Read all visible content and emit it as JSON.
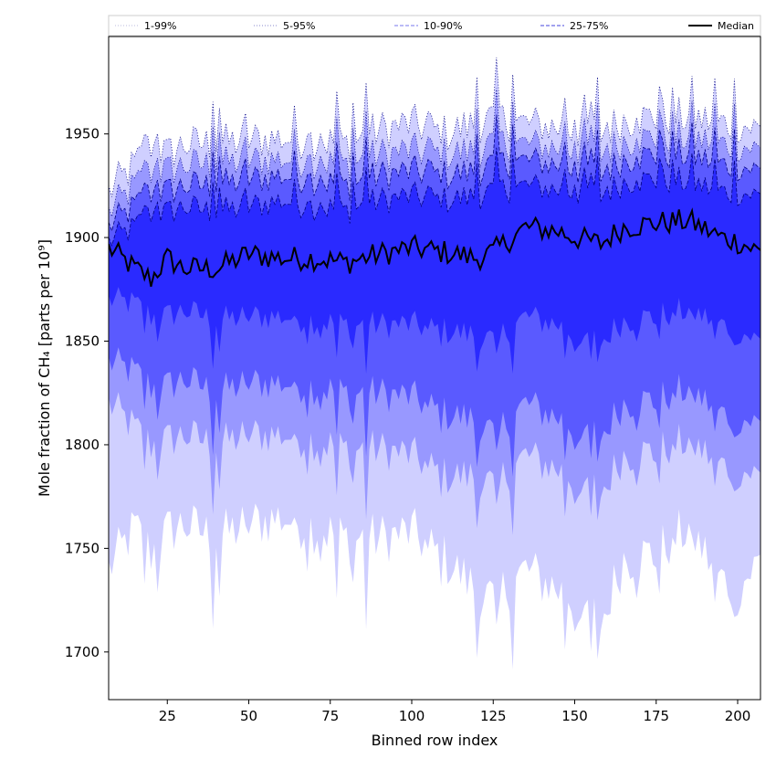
{
  "chart_data": {
    "type": "area",
    "title": "",
    "xlabel": "Binned row index",
    "ylabel": "Mole fraction of CH₄ [parts per 10⁹]",
    "xlim": [
      7,
      207
    ],
    "ylim": [
      1677,
      1997
    ],
    "xticks": [
      25,
      50,
      75,
      100,
      125,
      150,
      175,
      200
    ],
    "yticks": [
      1700,
      1750,
      1800,
      1850,
      1900,
      1950
    ],
    "grid": false,
    "legend_position": "top, outside plot (single row)",
    "colors": {
      "band_1_99": "#cfcfff",
      "band_5_95": "#9898ff",
      "band_10_90": "#5a5aff",
      "band_25_75": "#2a2aff",
      "median": "#000000",
      "edge": "#000080"
    },
    "legend": [
      {
        "label": "1-99%",
        "style": "dotted"
      },
      {
        "label": "5-95%",
        "style": "dotted"
      },
      {
        "label": "10-90%",
        "style": "dashed"
      },
      {
        "label": "25-75%",
        "style": "dashed"
      },
      {
        "label": "Median",
        "style": "solid"
      }
    ],
    "x_knots": [
      7,
      15,
      20,
      25,
      30,
      40,
      50,
      60,
      70,
      80,
      90,
      100,
      110,
      120,
      125,
      135,
      145,
      150,
      158,
      165,
      175,
      185,
      195,
      200,
      207
    ],
    "median_knots": [
      1895,
      1885,
      1880,
      1890,
      1885,
      1885,
      1892,
      1890,
      1890,
      1888,
      1892,
      1895,
      1893,
      1890,
      1893,
      1905,
      1903,
      1900,
      1897,
      1905,
      1907,
      1908,
      1900,
      1898,
      1893
    ],
    "q25_knots": [
      1870,
      1868,
      1862,
      1862,
      1865,
      1860,
      1862,
      1862,
      1860,
      1858,
      1858,
      1858,
      1855,
      1853,
      1850,
      1862,
      1858,
      1853,
      1850,
      1860,
      1862,
      1865,
      1858,
      1855,
      1850
    ],
    "q75_knots": [
      1898,
      1905,
      1912,
      1912,
      1915,
      1912,
      1915,
      1918,
      1915,
      1913,
      1918,
      1920,
      1918,
      1920,
      1922,
      1925,
      1923,
      1922,
      1920,
      1927,
      1928,
      1927,
      1922,
      1922,
      1920
    ],
    "q10_knots": [
      1840,
      1835,
      1828,
      1828,
      1832,
      1825,
      1830,
      1830,
      1828,
      1825,
      1825,
      1823,
      1815,
      1812,
      1805,
      1820,
      1813,
      1808,
      1805,
      1820,
      1822,
      1827,
      1815,
      1813,
      1810
    ],
    "q90_knots": [
      1905,
      1915,
      1922,
      1922,
      1925,
      1925,
      1928,
      1930,
      1928,
      1925,
      1930,
      1932,
      1930,
      1932,
      1935,
      1937,
      1935,
      1933,
      1930,
      1938,
      1940,
      1940,
      1935,
      1935,
      1932
    ],
    "q05_knots": [
      1820,
      1808,
      1800,
      1802,
      1805,
      1800,
      1805,
      1805,
      1802,
      1798,
      1798,
      1795,
      1785,
      1785,
      1780,
      1795,
      1788,
      1783,
      1778,
      1795,
      1797,
      1802,
      1790,
      1788,
      1785
    ],
    "q95_knots": [
      1912,
      1925,
      1932,
      1932,
      1935,
      1935,
      1937,
      1938,
      1937,
      1935,
      1940,
      1942,
      1940,
      1942,
      1945,
      1945,
      1943,
      1942,
      1940,
      1947,
      1948,
      1948,
      1945,
      1945,
      1942
    ],
    "q01_knots": [
      1740,
      1760,
      1748,
      1758,
      1762,
      1755,
      1762,
      1765,
      1760,
      1755,
      1755,
      1758,
      1745,
      1730,
      1725,
      1740,
      1730,
      1725,
      1715,
      1745,
      1748,
      1760,
      1735,
      1730,
      1745
    ],
    "q99_knots": [
      1922,
      1935,
      1945,
      1940,
      1945,
      1945,
      1947,
      1948,
      1947,
      1945,
      1952,
      1955,
      1950,
      1955,
      1957,
      1955,
      1953,
      1952,
      1950,
      1957,
      1958,
      1958,
      1955,
      1955,
      1952
    ]
  }
}
